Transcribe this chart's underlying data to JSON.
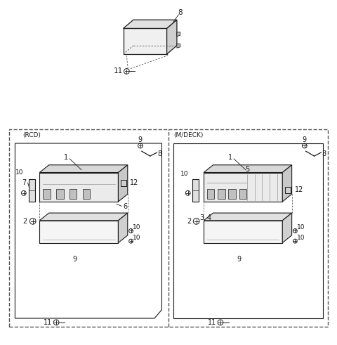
{
  "bg_color": "#ffffff",
  "line_color": "#1a1a1a",
  "dash_color": "#555555",
  "figsize": [
    4.8,
    4.91
  ],
  "dpi": 100
}
